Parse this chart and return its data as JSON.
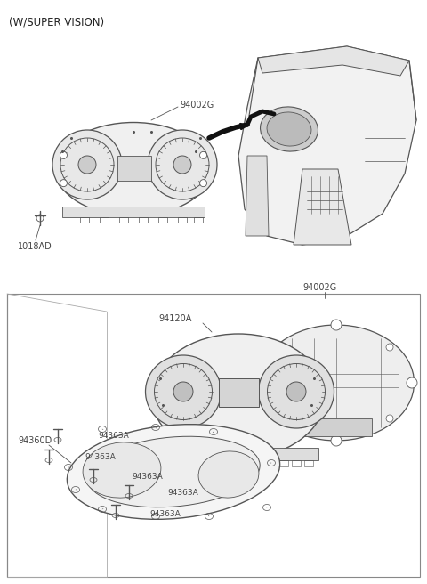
{
  "bg_color": "#ffffff",
  "lc": "#555555",
  "lc_dark": "#333333",
  "tc": "#444444",
  "fig_width": 4.8,
  "fig_height": 6.56,
  "dpi": 100,
  "header": "(W/SUPER VISION)",
  "top_cluster_label": "94002G",
  "top_screw_label": "1018AD",
  "bot_cluster_label": "94002G",
  "bot_face_label": "94120A",
  "bot_lens_label": "94360D",
  "screw_label": "94363A"
}
